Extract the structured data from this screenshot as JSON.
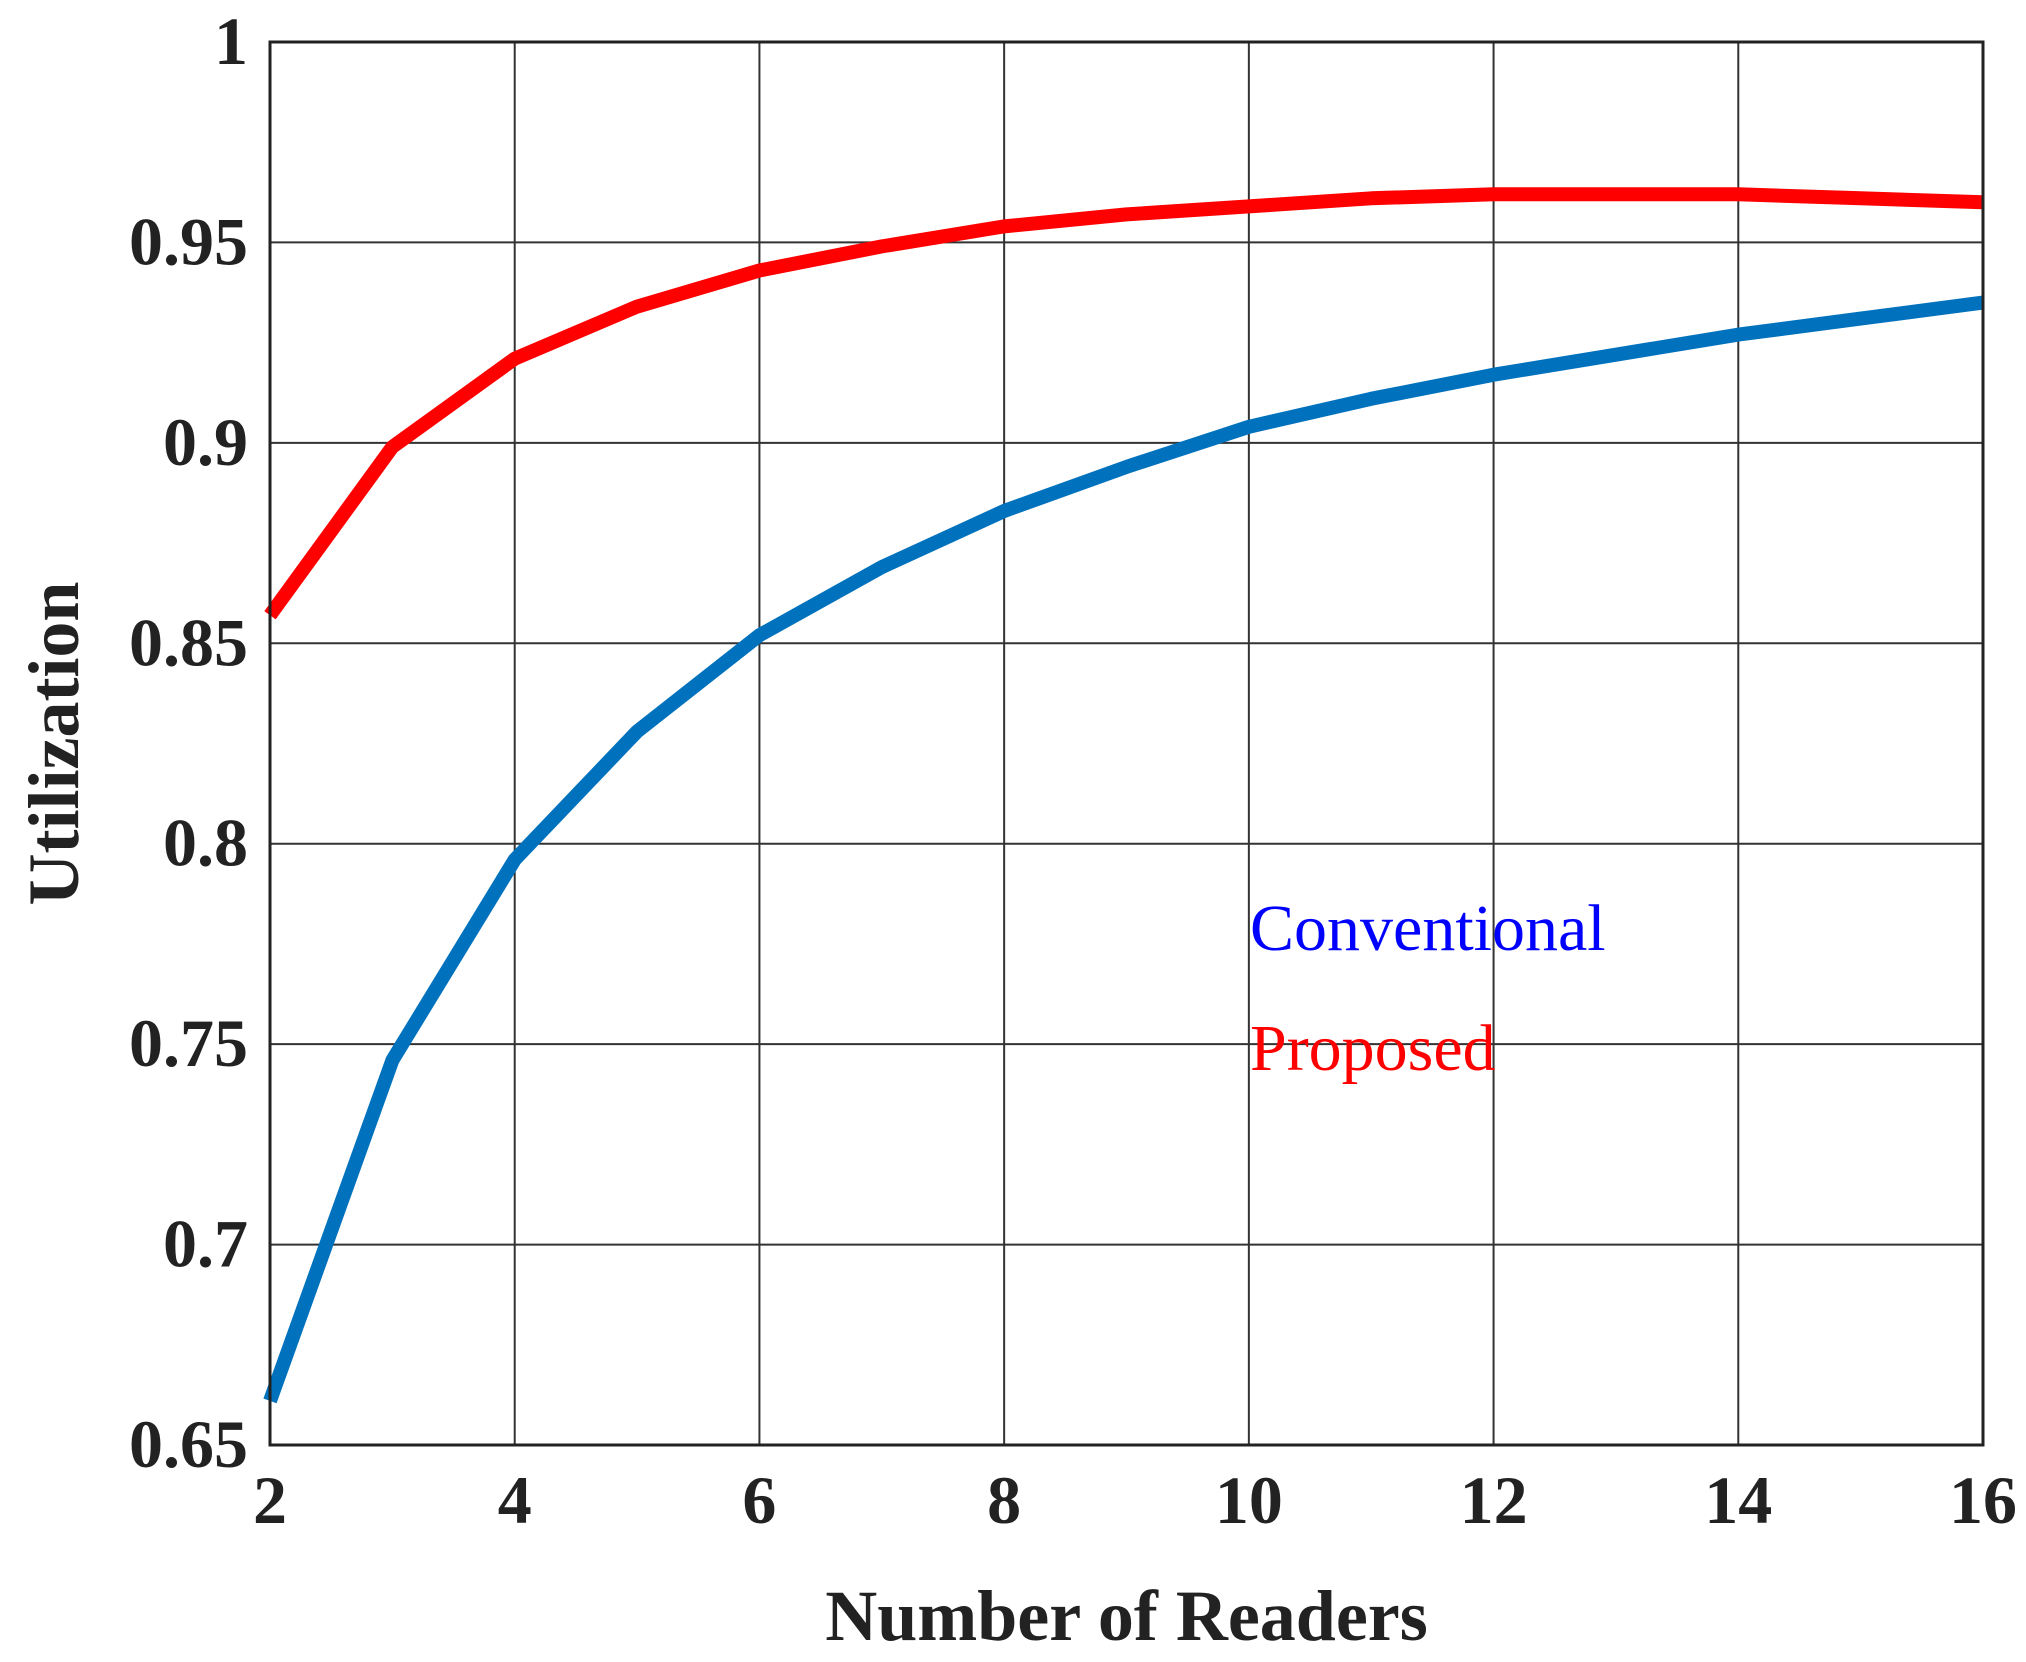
{
  "chart_data": {
    "type": "line",
    "title": "",
    "xlabel": "Number of Readers",
    "ylabel": "Utilization",
    "xlim": [
      2,
      16
    ],
    "ylim": [
      0.65,
      1
    ],
    "xticks": [
      2,
      4,
      6,
      8,
      10,
      12,
      14,
      16
    ],
    "xtick_labels": [
      "2",
      "4",
      "6",
      "8",
      "10",
      "12",
      "14",
      "16"
    ],
    "yticks": [
      0.65,
      0.7,
      0.75,
      0.8,
      0.85,
      0.9,
      0.95,
      1
    ],
    "ytick_labels": [
      "0.65",
      "0.7",
      "0.75",
      "0.8",
      "0.85",
      "0.9",
      "0.95",
      "1"
    ],
    "grid": true,
    "legend_position": "center-right",
    "x": [
      2,
      3,
      4,
      5,
      6,
      7,
      8,
      9,
      10,
      11,
      12,
      13,
      14,
      15,
      16
    ],
    "series": [
      {
        "name": "Conventional",
        "color": "#0072BD",
        "label_color": "#0000FF",
        "values": [
          0.661,
          0.746,
          0.796,
          0.828,
          0.852,
          0.869,
          0.883,
          0.894,
          0.904,
          0.911,
          0.917,
          0.922,
          0.927,
          0.931,
          0.935
        ]
      },
      {
        "name": "Proposed",
        "color": "#FF0000",
        "label_color": "#FF0000",
        "values": [
          0.857,
          0.899,
          0.921,
          0.934,
          0.943,
          0.949,
          0.954,
          0.957,
          0.959,
          0.961,
          0.962,
          0.962,
          0.962,
          0.961,
          0.96
        ]
      }
    ]
  }
}
